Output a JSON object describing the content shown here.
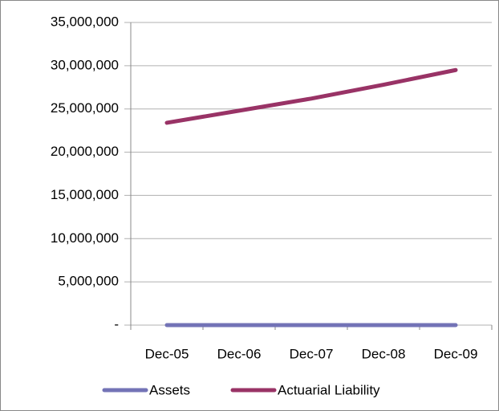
{
  "chart_data": {
    "type": "line",
    "categories": [
      "Dec-05",
      "Dec-06",
      "Dec-07",
      "Dec-08",
      "Dec-09"
    ],
    "series": [
      {
        "name": "Assets",
        "color": "#7373b6",
        "values": [
          0,
          0,
          0,
          0,
          0
        ]
      },
      {
        "name": "Actuarial Liability",
        "color": "#993366",
        "values": [
          23400000,
          24800000,
          26200000,
          27800000,
          29500000
        ]
      }
    ],
    "ylim": [
      0,
      35000000
    ],
    "yticks": [
      {
        "value": 0,
        "label": "-"
      },
      {
        "value": 5000000,
        "label": "5,000,000"
      },
      {
        "value": 10000000,
        "label": "10,000,000"
      },
      {
        "value": 15000000,
        "label": "15,000,000"
      },
      {
        "value": 20000000,
        "label": "20,000,000"
      },
      {
        "value": 25000000,
        "label": "25,000,000"
      },
      {
        "value": 30000000,
        "label": "30,000,000"
      },
      {
        "value": 35000000,
        "label": "35,000,000"
      }
    ],
    "grid": true,
    "legend": "bottom"
  }
}
